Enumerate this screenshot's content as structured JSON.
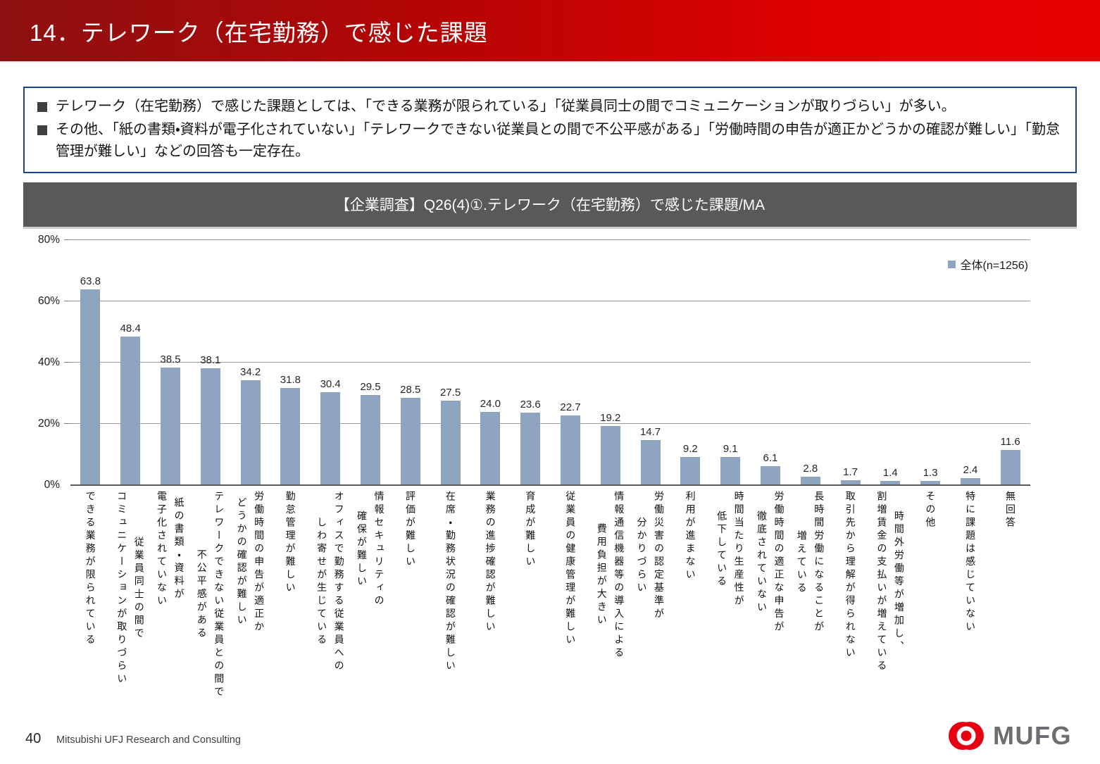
{
  "header": {
    "title": "14．テレワーク（在宅勤務）で感じた課題"
  },
  "summary": {
    "bullets": [
      "テレワーク（在宅勤務）で感じた課題としては、「できる業務が限られている」「従業員同士の間でコミュニケーションが取りづらい」が多い。",
      "その他、「紙の書類・資料が電子化されていない」「テレワークできない従業員との間で不公平感がある」「労働時間の申告が適正かどうかの確認が難しい」「勤怠管理が難しい」などの回答も一定存在。"
    ]
  },
  "chart_data": {
    "type": "bar",
    "title": "【企業調査】Q26(4)①.テレワーク（在宅勤務）で感じた課題/MA",
    "legend": {
      "label": "全体(n=1256)",
      "position": "top-right"
    },
    "categories": [
      "できる業務が限られている",
      "従業員同士の間で\nコミュニケーションが取りづらい",
      "紙の書類・資料が\n電子化されていない",
      "テレワークできない従業員との間で\n不公平感がある",
      "労働時間の申告が適正か\nどうかの確認が難しい",
      "勤怠管理が難しい",
      "オフィスで勤務する従業員への\nしわ寄せが生じている",
      "情報セキュリティの\n確保が難しい",
      "評価が難しい",
      "在席・勤務状況の確認が難しい",
      "業務の進捗確認が難しい",
      "育成が難しい",
      "従業員の健康管理が難しい",
      "情報通信機器等の導入による\n費用負担が大きい",
      "労働災害の認定基準が\n分かりづらい",
      "利用が進まない",
      "時間当たり生産性が\n低下している",
      "労働時間の適正な申告が\n徹底されていない",
      "長時間労働になることが\n増えている",
      "取引先から理解が得られない",
      "時間外労働等が増加し、\n割増賃金の支払いが増えている",
      "その他",
      "特に課題は感じていない",
      "無回答"
    ],
    "values": [
      63.8,
      48.4,
      38.5,
      38.1,
      34.2,
      31.8,
      30.4,
      29.5,
      28.5,
      27.5,
      24.0,
      23.6,
      22.7,
      19.2,
      14.7,
      9.2,
      9.1,
      6.1,
      2.8,
      1.7,
      1.4,
      1.3,
      2.4,
      11.6
    ],
    "xlabel": "",
    "ylabel": "",
    "ylim": [
      0,
      80
    ],
    "yticks": [
      "0%",
      "20%",
      "40%",
      "60%",
      "80%"
    ],
    "grid": true,
    "bar_color": "#8da3c0",
    "gridline_color": "#9a9a9a",
    "axis_color": "#595959"
  },
  "colors": {
    "header_red_dark": "#8e1111",
    "header_red_bright": "#e60000",
    "summary_border_blue": "#1c4587",
    "title_bar_gray": "#595959",
    "logo_red": "#e60012",
    "logo_gray": "#6d6e71"
  },
  "footer": {
    "page_number": "40",
    "company": "Mitsubishi UFJ Research and Consulting",
    "logo_text": "MUFG"
  }
}
